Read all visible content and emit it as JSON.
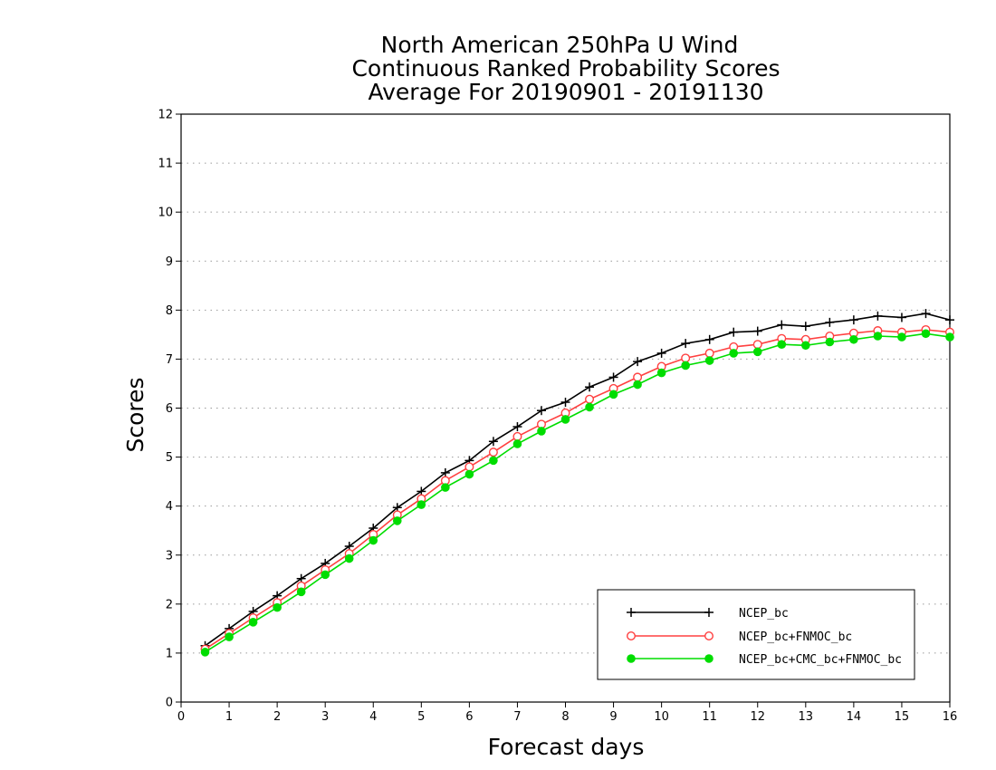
{
  "chart_data": {
    "type": "line",
    "title": [
      "North American 250hPa U Wind",
      "Continuous Ranked Probability Scores",
      "Average For 20190901 - 20191130"
    ],
    "xlabel": "Forecast days",
    "ylabel": "Scores",
    "xlim": [
      0,
      16
    ],
    "ylim": [
      0,
      12
    ],
    "xticks": [
      "0",
      "1",
      "2",
      "3",
      "4",
      "5",
      "6",
      "7",
      "8",
      "9",
      "10",
      "11",
      "12",
      "13",
      "14",
      "15",
      "16"
    ],
    "yticks": [
      "0",
      "1",
      "2",
      "3",
      "4",
      "5",
      "6",
      "7",
      "8",
      "9",
      "10",
      "11",
      "12"
    ],
    "grid": true,
    "legend_position": "bottom-right",
    "x": [
      0.5,
      1,
      1.5,
      2,
      2.5,
      3,
      3.5,
      4,
      4.5,
      5,
      5.5,
      6,
      6.5,
      7,
      7.5,
      8,
      8.5,
      9,
      9.5,
      10,
      10.5,
      11,
      11.5,
      12,
      12.5,
      13,
      13.5,
      14,
      14.5,
      15,
      15.5,
      16
    ],
    "series": [
      {
        "name": "NCEP_bc",
        "color": "#000000",
        "marker": "plus",
        "values": [
          1.15,
          1.5,
          1.85,
          2.17,
          2.52,
          2.83,
          3.18,
          3.55,
          3.97,
          4.3,
          4.68,
          4.93,
          5.32,
          5.62,
          5.95,
          6.12,
          6.43,
          6.63,
          6.95,
          7.12,
          7.32,
          7.4,
          7.55,
          7.57,
          7.7,
          7.67,
          7.75,
          7.8,
          7.88,
          7.85,
          7.93,
          7.8
        ]
      },
      {
        "name": "NCEP_bc+FNMOC_bc",
        "color": "#ff4040",
        "marker": "open-circle",
        "values": [
          1.08,
          1.4,
          1.72,
          2.03,
          2.37,
          2.7,
          3.03,
          3.42,
          3.82,
          4.15,
          4.52,
          4.8,
          5.1,
          5.42,
          5.67,
          5.9,
          6.18,
          6.4,
          6.63,
          6.85,
          7.02,
          7.12,
          7.25,
          7.3,
          7.42,
          7.4,
          7.47,
          7.53,
          7.58,
          7.55,
          7.6,
          7.55
        ]
      },
      {
        "name": "NCEP_bc+CMC_bc+FNMOC_bc",
        "color": "#00dd00",
        "marker": "filled-circle",
        "values": [
          1.02,
          1.33,
          1.63,
          1.93,
          2.25,
          2.6,
          2.93,
          3.3,
          3.7,
          4.03,
          4.38,
          4.65,
          4.93,
          5.27,
          5.53,
          5.77,
          6.02,
          6.28,
          6.48,
          6.72,
          6.87,
          6.97,
          7.12,
          7.15,
          7.3,
          7.28,
          7.35,
          7.4,
          7.47,
          7.45,
          7.52,
          7.45
        ]
      }
    ]
  }
}
